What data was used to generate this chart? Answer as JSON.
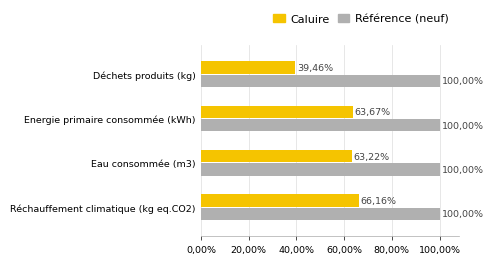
{
  "categories": [
    "Réchauffement climatique (kg eq.CO2)",
    "Eau consommée (m3)",
    "Energie primaire consommée (kWh)",
    "Déchets produits (kg)"
  ],
  "caluire_values": [
    66.16,
    63.22,
    63.67,
    39.46
  ],
  "reference_values": [
    100.0,
    100.0,
    100.0,
    100.0
  ],
  "caluire_labels": [
    "66,16%",
    "63,22%",
    "63,67%",
    "39,46%"
  ],
  "reference_labels": [
    "100,00%",
    "100,00%",
    "100,00%",
    "100,00%"
  ],
  "caluire_color": "#F5C400",
  "reference_color": "#B0B0B0",
  "legend_caluire": "Caluire",
  "legend_reference": "Référence (neuf)",
  "xlim": [
    0,
    108
  ],
  "xticks": [
    0,
    20,
    40,
    60,
    80,
    100
  ],
  "xtick_labels": [
    "0,00%",
    "20,00%",
    "40,00%",
    "60,00%",
    "80,00%",
    "100,00%"
  ],
  "bar_height": 0.28,
  "bar_gap": 0.02,
  "label_fontsize": 6.8,
  "tick_fontsize": 6.8,
  "legend_fontsize": 8.0,
  "background_color": "#FFFFFF"
}
